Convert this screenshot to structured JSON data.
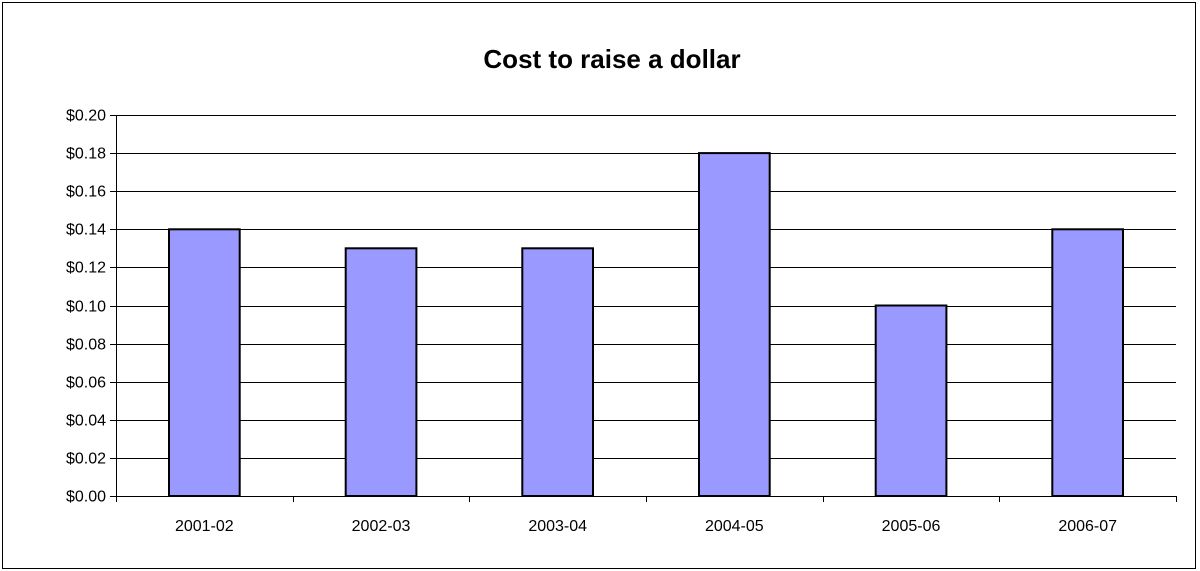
{
  "chart_data": {
    "type": "bar",
    "title": "Cost to raise a dollar",
    "xlabel": "",
    "ylabel": "",
    "categories": [
      "2001-02",
      "2002-03",
      "2003-04",
      "2004-05",
      "2005-06",
      "2006-07"
    ],
    "values": [
      0.14,
      0.13,
      0.13,
      0.18,
      0.1,
      0.14
    ],
    "ylim": [
      0,
      0.2
    ],
    "y_ticks": [
      0,
      0.02,
      0.04,
      0.06,
      0.08,
      0.1,
      0.12,
      0.14,
      0.16,
      0.18,
      0.2
    ],
    "y_tick_labels": [
      "$0.00",
      "$0.02",
      "$0.04",
      "$0.06",
      "$0.08",
      "$0.10",
      "$0.12",
      "$0.14",
      "$0.16",
      "$0.18",
      "$0.20"
    ],
    "grid": true,
    "legend": "none",
    "bar_color": "#9999FF",
    "bar_edge_color": "#000000"
  }
}
